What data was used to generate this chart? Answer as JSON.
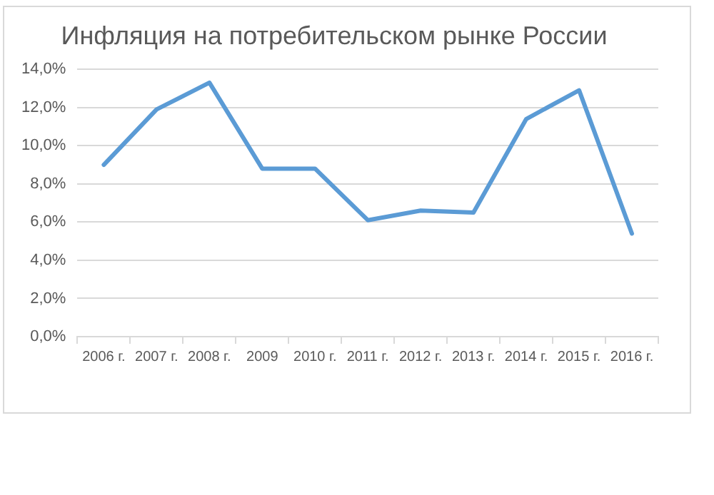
{
  "chart_data": {
    "type": "line",
    "title": "Инфляция на потребительском рынке России",
    "categories": [
      "2006 г.",
      "2007 г.",
      "2008 г.",
      "2009",
      "2010 г.",
      "2011 г.",
      "2012 г.",
      "2013 г.",
      "2014 г.",
      "2015 г.",
      "2016 г."
    ],
    "series": [
      {
        "color": "#5b9bd5",
        "values": [
          9.0,
          11.9,
          13.3,
          8.8,
          8.8,
          6.1,
          6.6,
          6.5,
          11.4,
          12.9,
          5.4
        ]
      }
    ],
    "ylim": [
      0,
      14
    ],
    "yticks": [
      {
        "value": 0,
        "label": "0,0%"
      },
      {
        "value": 2,
        "label": "2,0%"
      },
      {
        "value": 4,
        "label": "4,0%"
      },
      {
        "value": 6,
        "label": "6,0%"
      },
      {
        "value": 8,
        "label": "8,0%"
      },
      {
        "value": 10,
        "label": "10,0%"
      },
      {
        "value": 12,
        "label": "12,0%"
      },
      {
        "value": 14,
        "label": "14,0%"
      }
    ],
    "grid": "y",
    "marker": "none",
    "line_style": "solid",
    "legend": false
  }
}
